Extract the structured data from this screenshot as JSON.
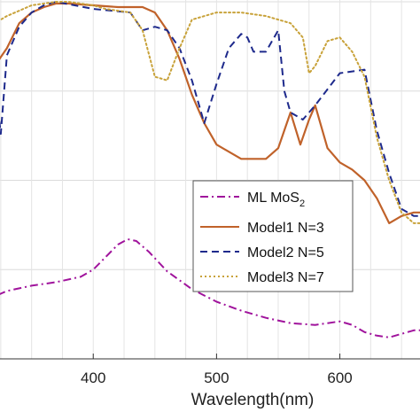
{
  "chart_data": {
    "type": "line",
    "xlabel": "Wavelength(nm)",
    "xlim": [
      310,
      665
    ],
    "ylim": [
      0,
      1.0
    ],
    "x_ticks": [
      400,
      500,
      600
    ],
    "grid": true,
    "legend_position": "right",
    "series": [
      {
        "name": "ML MoS",
        "name_subscript": "2",
        "color": "#a0139c",
        "style": "dashdot",
        "x": [
          310,
          330,
          350,
          370,
          390,
          400,
          410,
          420,
          428,
          435,
          445,
          460,
          480,
          500,
          520,
          540,
          560,
          580,
          590,
          600,
          610,
          615,
          620,
          630,
          640,
          650,
          660,
          665
        ],
        "y": [
          0.16,
          0.19,
          0.205,
          0.215,
          0.23,
          0.25,
          0.285,
          0.32,
          0.335,
          0.33,
          0.3,
          0.245,
          0.195,
          0.16,
          0.135,
          0.115,
          0.1,
          0.095,
          0.1,
          0.105,
          0.095,
          0.085,
          0.075,
          0.065,
          0.06,
          0.07,
          0.08,
          0.08
        ]
      },
      {
        "name": "Model1 N=3",
        "color": "#c0622a",
        "style": "solid",
        "x": [
          310,
          315,
          320,
          330,
          340,
          350,
          360,
          370,
          380,
          400,
          420,
          440,
          450,
          460,
          470,
          480,
          490,
          500,
          520,
          540,
          550,
          555,
          560,
          568,
          575,
          580,
          590,
          600,
          610,
          620,
          630,
          640,
          650,
          660,
          665
        ],
        "y": [
          0.84,
          0.85,
          0.82,
          0.87,
          0.94,
          0.97,
          0.985,
          0.995,
          0.995,
          0.99,
          0.985,
          0.985,
          0.97,
          0.92,
          0.84,
          0.74,
          0.66,
          0.6,
          0.56,
          0.56,
          0.59,
          0.64,
          0.69,
          0.6,
          0.67,
          0.71,
          0.59,
          0.55,
          0.53,
          0.5,
          0.45,
          0.38,
          0.4,
          0.41,
          0.41
        ]
      },
      {
        "name": "Model2 N=5",
        "color": "#1e2a8c",
        "style": "dashed",
        "x": [
          310,
          315,
          320,
          325,
          330,
          340,
          350,
          360,
          370,
          400,
          430,
          440,
          450,
          460,
          470,
          480,
          490,
          500,
          510,
          520,
          525,
          530,
          540,
          550,
          555,
          560,
          570,
          580,
          600,
          620,
          630,
          640,
          650,
          660,
          665
        ],
        "y": [
          0.8,
          0.72,
          0.78,
          0.63,
          0.85,
          0.93,
          0.97,
          0.99,
          1.0,
          0.98,
          0.97,
          0.92,
          0.93,
          0.92,
          0.87,
          0.78,
          0.66,
          0.77,
          0.87,
          0.91,
          0.9,
          0.86,
          0.86,
          0.92,
          0.75,
          0.69,
          0.67,
          0.71,
          0.8,
          0.81,
          0.64,
          0.52,
          0.42,
          0.4,
          0.4
        ]
      },
      {
        "name": "Model3 N=7",
        "color": "#c8a23a",
        "style": "dotted",
        "x": [
          310,
          320,
          330,
          340,
          350,
          360,
          370,
          380,
          400,
          410,
          430,
          440,
          450,
          460,
          470,
          480,
          500,
          520,
          540,
          560,
          570,
          575,
          580,
          590,
          600,
          610,
          620,
          630,
          640,
          650,
          660,
          665
        ],
        "y": [
          0.92,
          0.94,
          0.96,
          0.975,
          0.99,
          0.995,
          1.0,
          1.0,
          0.99,
          0.98,
          0.97,
          0.92,
          0.79,
          0.78,
          0.87,
          0.95,
          0.97,
          0.97,
          0.96,
          0.94,
          0.9,
          0.8,
          0.82,
          0.89,
          0.9,
          0.86,
          0.79,
          0.62,
          0.5,
          0.41,
          0.38,
          0.38
        ]
      }
    ]
  }
}
